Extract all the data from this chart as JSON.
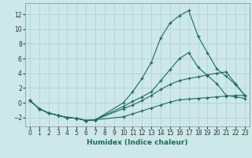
{
  "title": "",
  "xlabel": "Humidex (Indice chaleur)",
  "ylabel": "",
  "background_color": "#cce8e8",
  "grid_color": "#b8d4d4",
  "line_color": "#1e6b5e",
  "xlim": [
    -0.5,
    23.5
  ],
  "ylim": [
    -3.2,
    13.5
  ],
  "xticks": [
    0,
    1,
    2,
    3,
    4,
    5,
    6,
    7,
    8,
    9,
    10,
    11,
    12,
    13,
    14,
    15,
    16,
    17,
    18,
    19,
    20,
    21,
    22,
    23
  ],
  "yticks": [
    -2,
    0,
    2,
    4,
    6,
    8,
    10,
    12
  ],
  "line1_x": [
    0,
    1,
    2,
    3,
    4,
    5,
    6,
    7,
    10,
    11,
    12,
    13,
    14,
    15,
    16,
    17,
    18,
    19,
    20,
    21,
    22,
    23
  ],
  "line1_y": [
    0.3,
    -0.8,
    -1.4,
    -1.7,
    -2.0,
    -2.1,
    -2.4,
    -2.3,
    -1.9,
    -1.5,
    -1.1,
    -0.7,
    -0.3,
    0.1,
    0.4,
    0.5,
    0.6,
    0.7,
    0.8,
    0.9,
    1.0,
    1.0
  ],
  "line2_x": [
    0,
    1,
    2,
    3,
    4,
    5,
    6,
    7,
    10,
    11,
    12,
    13,
    14,
    15,
    16,
    17,
    18,
    19,
    20,
    21,
    22,
    23
  ],
  "line2_y": [
    0.3,
    -0.8,
    -1.4,
    -1.7,
    -2.0,
    -2.1,
    -2.4,
    -2.3,
    -0.8,
    -0.3,
    0.3,
    1.0,
    1.8,
    2.5,
    3.0,
    3.3,
    3.5,
    3.8,
    4.0,
    4.2,
    2.6,
    1.0
  ],
  "line3_x": [
    0,
    1,
    2,
    3,
    4,
    5,
    6,
    7,
    10,
    11,
    12,
    13,
    14,
    15,
    16,
    17,
    18,
    19,
    20,
    21,
    22,
    23
  ],
  "line3_y": [
    0.3,
    -0.8,
    -1.4,
    -1.7,
    -2.0,
    -2.1,
    -2.4,
    -2.3,
    0.0,
    1.5,
    3.3,
    5.5,
    8.8,
    10.8,
    11.8,
    12.5,
    9.0,
    6.8,
    4.6,
    3.6,
    2.5,
    1.0
  ],
  "line4_x": [
    0,
    1,
    2,
    3,
    4,
    5,
    6,
    7,
    10,
    11,
    12,
    13,
    14,
    15,
    16,
    17,
    18,
    19,
    20,
    21,
    22,
    23
  ],
  "line4_y": [
    0.3,
    -0.8,
    -1.4,
    -1.7,
    -2.0,
    -2.1,
    -2.4,
    -2.3,
    -0.5,
    0.2,
    0.8,
    1.5,
    3.0,
    4.5,
    6.0,
    6.8,
    4.8,
    3.7,
    2.6,
    1.0,
    0.8,
    0.6
  ]
}
